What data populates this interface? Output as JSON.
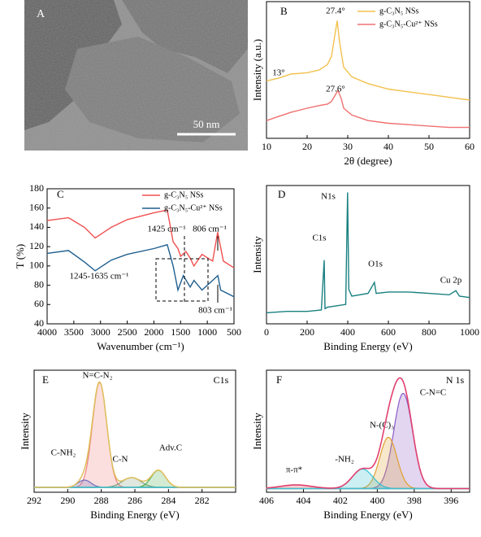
{
  "chart_data": [
    {
      "type": "image",
      "label": "A",
      "scale_bar": "50 nm"
    },
    {
      "type": "line",
      "label": "B",
      "xlabel": "2θ (degree)",
      "ylabel": "Intensity (a.u.)",
      "xlim": [
        10,
        60
      ],
      "xticks": [
        10,
        20,
        30,
        40,
        50,
        60
      ],
      "ylim": [
        0,
        100
      ],
      "series": [
        {
          "name": "g-C₃N₅ NSs",
          "color": "#f2c14e",
          "x": [
            10,
            13,
            16,
            20,
            23,
            25,
            26,
            26.8,
            27.4,
            28,
            29,
            31,
            35,
            40,
            45,
            50,
            55,
            60
          ],
          "values": [
            42,
            44,
            47,
            48,
            50,
            54,
            60,
            75,
            86,
            70,
            52,
            45,
            40,
            36,
            34,
            32,
            30,
            28
          ]
        },
        {
          "name": "g-C₃N₅-Cu²⁺ NSs",
          "color": "#f07070",
          "x": [
            10,
            13,
            16,
            20,
            23,
            25,
            26,
            26.8,
            27.6,
            28.4,
            29,
            31,
            35,
            40,
            45,
            50,
            55,
            60
          ],
          "values": [
            13,
            16,
            19,
            22,
            24,
            25,
            27,
            31,
            35,
            29,
            22,
            17,
            13,
            11,
            10,
            9,
            8,
            8
          ]
        }
      ],
      "annotations": [
        "27.4°",
        "13°",
        "27.6°"
      ]
    },
    {
      "type": "line",
      "label": "C",
      "xlabel": "Wavenumber (cm⁻¹)",
      "ylabel": "T (%)",
      "xlim": [
        4000,
        500
      ],
      "xticks": [
        4000,
        3500,
        3000,
        2500,
        2000,
        1500,
        1000,
        500
      ],
      "ylim": [
        40,
        180
      ],
      "yticks": [
        40,
        60,
        80,
        100,
        120,
        140,
        160,
        180
      ],
      "series": [
        {
          "name": "g-C₃N₅ NSs",
          "color": "#f05050",
          "x": [
            4000,
            3600,
            3300,
            3100,
            2800,
            2500,
            2000,
            1750,
            1640,
            1550,
            1500,
            1400,
            1320,
            1250,
            1100,
            900,
            806,
            700,
            500
          ],
          "values": [
            147,
            150,
            140,
            129,
            140,
            148,
            155,
            158,
            125,
            118,
            110,
            115,
            108,
            100,
            112,
            105,
            135,
            105,
            98
          ]
        },
        {
          "name": "g-C₃N₅-Cu²⁺ NSs",
          "color": "#1f5f8f",
          "x": [
            4000,
            3600,
            3300,
            3100,
            2800,
            2500,
            2000,
            1750,
            1640,
            1550,
            1450,
            1320,
            1250,
            1100,
            900,
            803,
            750,
            500
          ],
          "values": [
            113,
            116,
            104,
            95,
            106,
            112,
            118,
            122,
            100,
            75,
            90,
            78,
            85,
            75,
            85,
            90,
            75,
            68
          ]
        }
      ],
      "annotations": [
        "1425 cm⁻¹",
        "806 cm⁻¹",
        "1245-1635 cm⁻¹",
        "803 cm⁻¹"
      ]
    },
    {
      "type": "line",
      "label": "D",
      "xlabel": "Binding Energy (eV)",
      "ylabel": "Intensity",
      "xlim": [
        0,
        1000
      ],
      "xticks": [
        0,
        200,
        400,
        600,
        800,
        1000
      ],
      "ylim": [
        0,
        100
      ],
      "series": [
        {
          "color": "#1a8080",
          "x": [
            0,
            100,
            200,
            270,
            284,
            288,
            300,
            390,
            399,
            405,
            420,
            500,
            531,
            540,
            600,
            700,
            800,
            900,
            932,
            950,
            1000
          ],
          "values": [
            8,
            9,
            9,
            10,
            46,
            11,
            12,
            14,
            95,
            25,
            20,
            22,
            30,
            22,
            23,
            23,
            22,
            21,
            24,
            20,
            19
          ]
        }
      ],
      "annotations": [
        "N1s",
        "C1s",
        "O1s",
        "Cu 2p"
      ]
    },
    {
      "type": "peak_fit",
      "label": "E",
      "title": "C1s",
      "xlabel": "Binding Energy (eV)",
      "ylabel": "Intensity",
      "xlim": [
        292,
        280
      ],
      "xticks": [
        292,
        290,
        288,
        286,
        284,
        282
      ],
      "ylim": [
        0,
        100
      ],
      "baseline": 4,
      "baseline_color": "#40c0d0",
      "envelope_color": "#e0c060",
      "peaks": [
        {
          "name": "N=C-N₂",
          "center": 288.1,
          "height": 86,
          "fwhm": 1.0,
          "color": "#f08080"
        },
        {
          "name": "C-NH₂",
          "center": 289.0,
          "height": 6,
          "fwhm": 0.9,
          "color": "#7070c0"
        },
        {
          "name": "C-N",
          "center": 286.2,
          "height": 8,
          "fwhm": 1.3,
          "color": "#80a080"
        },
        {
          "name": "Adv.C",
          "center": 284.6,
          "height": 14,
          "fwhm": 1.0,
          "color": "#50b050"
        }
      ]
    },
    {
      "type": "peak_fit",
      "label": "F",
      "title": "N 1s",
      "xlabel": "Binding Energy (eV)",
      "ylabel": "Intensity",
      "xlim": [
        406,
        395
      ],
      "xticks": [
        406,
        404,
        402,
        400,
        398,
        396
      ],
      "ylim": [
        0,
        100
      ],
      "baseline": 3,
      "baseline_color": "#40c0d0",
      "envelope_color": "#e04070",
      "peaks": [
        {
          "name": "C-N=C",
          "center": 398.6,
          "height": 78,
          "fwhm": 1.2,
          "color": "#8a5cc8"
        },
        {
          "name": "N-(C)₃",
          "center": 399.4,
          "height": 42,
          "fwhm": 1.1,
          "color": "#e0a030"
        },
        {
          "name": "-NH₂",
          "center": 400.8,
          "height": 16,
          "fwhm": 1.3,
          "color": "#30c0d0"
        },
        {
          "name": "π-π*",
          "center": 404.4,
          "height": 3,
          "fwhm": 2.0,
          "color": "#e05050"
        }
      ]
    }
  ]
}
